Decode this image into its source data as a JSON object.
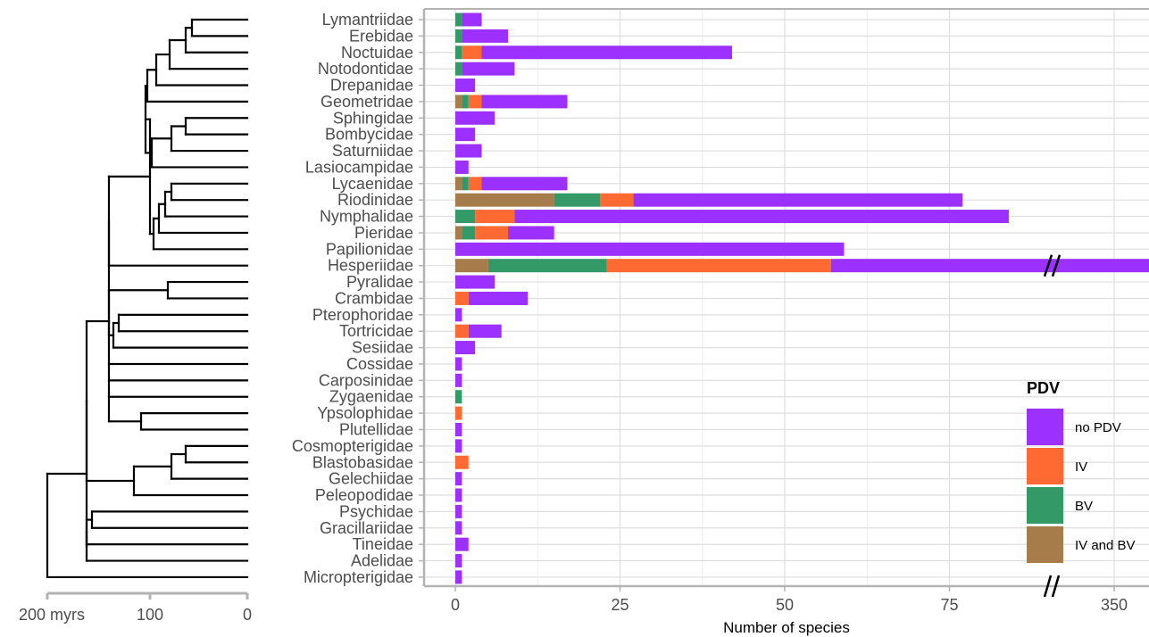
{
  "chart_data": {
    "type": "bar",
    "orientation": "horizontal",
    "stacked": true,
    "xlabel": "Number of species",
    "x_ticks": [
      "0",
      "25",
      "50",
      "75",
      "350"
    ],
    "axis_break": true,
    "legend": {
      "title": "PDV",
      "position": "bottom-right",
      "entries": [
        {
          "label": "no  PDV",
          "color": "#9B30FF"
        },
        {
          "label": "IV",
          "color": "#FF6A33"
        },
        {
          "label": "BV",
          "color": "#339966"
        },
        {
          "label": "IV and BV",
          "color": "#A67C4B"
        }
      ]
    },
    "series_order": [
      "IV and BV",
      "BV",
      "IV",
      "no  PDV"
    ],
    "series_colors": [
      "#A67C4B",
      "#339966",
      "#FF6A33",
      "#9B30FF"
    ],
    "categories": [
      "Lymantriidae",
      "Erebidae",
      "Noctuidae",
      "Notodontidae",
      "Drepanidae",
      "Geometridae",
      "Sphingidae",
      "Bombycidae",
      "Saturniidae",
      "Lasiocampidae",
      "Lycaenidae",
      "Riodinidae",
      "Nymphalidae",
      "Pieridae",
      "Papilionidae",
      "Hesperiidae",
      "Pyralidae",
      "Crambidae",
      "Pterophoridae",
      "Tortricidae",
      "Sesiidae",
      "Cossidae",
      "Carposinidae",
      "Zygaenidae",
      "Ypsolophidae",
      "Plutellidae",
      "Cosmopterigidae",
      "Blastobasidae",
      "Gelechiidae",
      "Peleopodidae",
      "Psychidae",
      "Gracillariidae",
      "Tineidae",
      "Adelidae",
      "Micropterigidae"
    ],
    "values": [
      [
        0,
        1,
        0,
        3
      ],
      [
        0,
        1,
        0,
        7
      ],
      [
        0,
        1,
        3,
        38
      ],
      [
        0,
        1,
        0,
        8
      ],
      [
        0,
        0,
        0,
        3
      ],
      [
        1,
        1,
        2,
        13
      ],
      [
        0,
        0,
        0,
        6
      ],
      [
        0,
        0,
        0,
        3
      ],
      [
        0,
        0,
        0,
        4
      ],
      [
        0,
        0,
        0,
        2
      ],
      [
        1,
        1,
        2,
        13
      ],
      [
        15,
        7,
        5,
        50
      ],
      [
        0,
        3,
        6,
        75
      ],
      [
        1,
        2,
        5,
        7
      ],
      [
        0,
        0,
        0,
        59
      ],
      [
        5,
        18,
        34,
        350
      ],
      [
        0,
        0,
        0,
        6
      ],
      [
        0,
        0,
        2,
        9
      ],
      [
        0,
        0,
        0,
        1
      ],
      [
        0,
        0,
        2,
        5
      ],
      [
        0,
        0,
        0,
        3
      ],
      [
        0,
        0,
        0,
        1
      ],
      [
        0,
        0,
        0,
        1
      ],
      [
        0,
        1,
        0,
        0
      ],
      [
        0,
        0,
        1,
        0
      ],
      [
        0,
        0,
        0,
        1
      ],
      [
        0,
        0,
        0,
        1
      ],
      [
        0,
        0,
        2,
        0
      ],
      [
        0,
        0,
        0,
        1
      ],
      [
        0,
        0,
        0,
        1
      ],
      [
        0,
        0,
        0,
        1
      ],
      [
        0,
        0,
        0,
        1
      ],
      [
        0,
        0,
        0,
        2
      ],
      [
        0,
        0,
        0,
        1
      ],
      [
        0,
        0,
        0,
        1
      ]
    ],
    "tree": {
      "axis_label_left": "200 myrs",
      "axis_ticks": [
        "100",
        "0"
      ],
      "axis_tick_values": [
        100,
        0
      ],
      "axis_max": 200
    }
  }
}
